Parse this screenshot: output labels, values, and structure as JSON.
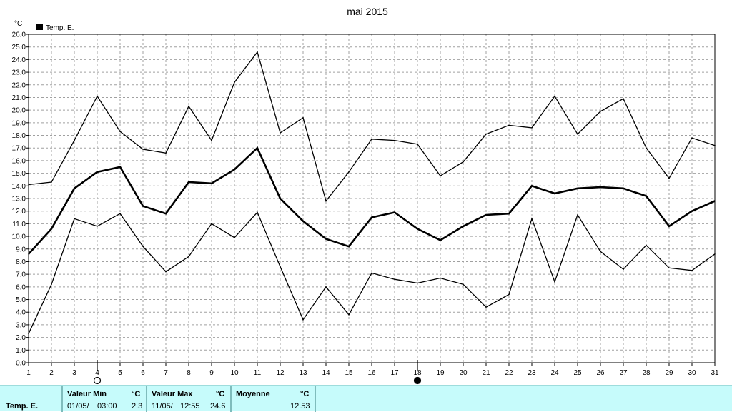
{
  "chart_data": {
    "type": "line",
    "title": "mai 2015",
    "ylabel": "°C",
    "xlabel": "",
    "legend": {
      "entries": [
        "Temp. E."
      ],
      "placement": "top-left"
    },
    "x": [
      1,
      2,
      3,
      4,
      5,
      6,
      7,
      8,
      9,
      10,
      11,
      12,
      13,
      14,
      15,
      16,
      17,
      18,
      19,
      20,
      21,
      22,
      23,
      24,
      25,
      26,
      27,
      28,
      29,
      30,
      31
    ],
    "ylim": [
      0,
      26
    ],
    "y_ticks": [
      "0.0",
      "1.0",
      "2.0",
      "3.0",
      "4.0",
      "5.0",
      "6.0",
      "7.0",
      "8.0",
      "9.0",
      "10.0",
      "11.0",
      "12.0",
      "13.0",
      "14.0",
      "15.0",
      "16.0",
      "17.0",
      "18.0",
      "19.0",
      "20.0",
      "21.0",
      "22.0",
      "23.0",
      "24.0",
      "25.0",
      "26.0"
    ],
    "grid": true,
    "series": [
      {
        "role": "max",
        "values": [
          14.1,
          14.3,
          17.6,
          21.1,
          18.3,
          16.9,
          16.6,
          20.3,
          17.6,
          22.2,
          24.6,
          18.2,
          19.4,
          12.8,
          15.1,
          17.7,
          17.6,
          17.3,
          14.8,
          15.9,
          18.1,
          18.8,
          18.6,
          21.1,
          18.1,
          19.9,
          20.9,
          17.0,
          14.6,
          17.8,
          17.2
        ]
      },
      {
        "role": "mean",
        "values": [
          8.6,
          10.6,
          13.8,
          15.1,
          15.5,
          12.4,
          11.8,
          14.3,
          14.2,
          15.3,
          17.0,
          13.0,
          11.2,
          9.8,
          9.2,
          11.5,
          11.9,
          10.6,
          9.7,
          10.8,
          11.7,
          11.8,
          14.0,
          13.4,
          13.8,
          13.9,
          13.8,
          13.2,
          10.8,
          12.0,
          12.8
        ]
      },
      {
        "role": "min",
        "values": [
          2.3,
          6.2,
          11.4,
          10.8,
          11.8,
          9.2,
          7.2,
          8.4,
          11.0,
          9.9,
          11.9,
          7.6,
          3.4,
          6.0,
          3.8,
          7.1,
          6.6,
          6.3,
          6.7,
          6.2,
          4.4,
          5.4,
          11.4,
          6.4,
          11.7,
          8.8,
          7.4,
          9.3,
          7.5,
          7.3,
          8.6
        ]
      }
    ],
    "moon_markers": [
      {
        "x": 4,
        "phase": "full-moon"
      },
      {
        "x": 18,
        "phase": "new-moon"
      }
    ]
  },
  "footer": {
    "series_label": "Temp. E.",
    "min": {
      "label": "Valeur Min",
      "unit": "°C",
      "date": "01/05/",
      "time": "03:00",
      "value": "2.3"
    },
    "max": {
      "label": "Valeur Max",
      "unit": "°C",
      "date": "11/05/",
      "time": "12:55",
      "value": "24.6"
    },
    "avg": {
      "label": "Moyenne",
      "unit": "°C",
      "value": "12.53"
    }
  },
  "colors": {
    "line": "#000000",
    "grid": "#a0a0a0",
    "footer_bg": "#c6fbfb"
  }
}
